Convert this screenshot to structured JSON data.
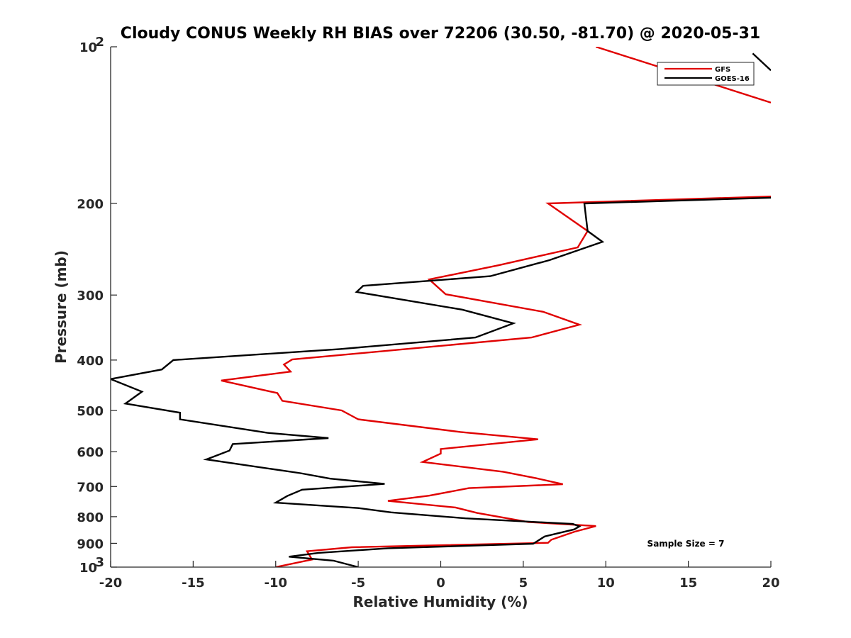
{
  "chart_data": {
    "type": "line",
    "title": "Cloudy CONUS Weekly RH BIAS over 72206 (30.50, -81.70) @ 2020-05-31",
    "xlabel": "Relative Humidity (%)",
    "ylabel": "Pressure (mb)",
    "xlim": [
      -20,
      20
    ],
    "ylim": [
      100,
      1000
    ],
    "yscale": "log",
    "yreversed": true,
    "xticks": [
      -20,
      -15,
      -10,
      -5,
      0,
      5,
      10,
      15,
      20
    ],
    "yticks": [
      {
        "value": 100,
        "label": "10",
        "sup": "2"
      },
      {
        "value": 200,
        "label": "200",
        "sup": ""
      },
      {
        "value": 300,
        "label": "300",
        "sup": ""
      },
      {
        "value": 400,
        "label": "400",
        "sup": ""
      },
      {
        "value": 500,
        "label": "500",
        "sup": ""
      },
      {
        "value": 600,
        "label": "600",
        "sup": ""
      },
      {
        "value": 700,
        "label": "700",
        "sup": ""
      },
      {
        "value": 800,
        "label": "800",
        "sup": ""
      },
      {
        "value": 900,
        "label": "900",
        "sup": ""
      },
      {
        "value": 1000,
        "label": "10",
        "sup": "3"
      }
    ],
    "legend_position": "top-right",
    "annotation": "Sample Size = 7",
    "series": [
      {
        "name": "GFS",
        "color": "#e00000",
        "points": [
          [
            9.4,
            100
          ],
          [
            20,
            128
          ],
          [
            20,
            194
          ],
          [
            6.5,
            200
          ],
          [
            8.9,
            226
          ],
          [
            8.3,
            243
          ],
          [
            3.5,
            263
          ],
          [
            -0.7,
            280
          ],
          [
            0.3,
            299
          ],
          [
            6.2,
            323
          ],
          [
            8.4,
            342
          ],
          [
            5.5,
            362
          ],
          [
            -9.0,
            399
          ],
          [
            -9.5,
            408
          ],
          [
            -9.1,
            421
          ],
          [
            -13.3,
            438
          ],
          [
            -9.9,
            463
          ],
          [
            -9.6,
            479
          ],
          [
            -6.0,
            500
          ],
          [
            -5.0,
            520
          ],
          [
            1.2,
            550
          ],
          [
            5.9,
            568
          ],
          [
            0.0,
            593
          ],
          [
            0.0,
            605
          ],
          [
            -1.1,
            628
          ],
          [
            3.8,
            656
          ],
          [
            5.8,
            675
          ],
          [
            7.4,
            693
          ],
          [
            1.7,
            705
          ],
          [
            -0.7,
            729
          ],
          [
            -3.2,
            746
          ],
          [
            0.9,
            768
          ],
          [
            2.2,
            787
          ],
          [
            5.3,
            819
          ],
          [
            9.4,
            834
          ],
          [
            8.1,
            855
          ],
          [
            6.7,
            886
          ],
          [
            6.5,
            898
          ],
          [
            -5.4,
            916
          ],
          [
            -8.1,
            932
          ],
          [
            -7.8,
            967
          ],
          [
            -10.0,
            1000
          ]
        ]
      },
      {
        "name": "GOES-16",
        "color": "#000000",
        "points": [
          [
            18.9,
            103
          ],
          [
            20,
            111
          ],
          [
            20,
            195
          ],
          [
            8.7,
            200
          ],
          [
            8.9,
            226
          ],
          [
            9.8,
            237
          ],
          [
            6.6,
            257
          ],
          [
            3.0,
            276
          ],
          [
            -4.7,
            288
          ],
          [
            -5.1,
            296
          ],
          [
            1.3,
            320
          ],
          [
            4.4,
            340
          ],
          [
            2.1,
            362
          ],
          [
            -6.1,
            381
          ],
          [
            -16.2,
            400
          ],
          [
            -16.9,
            417
          ],
          [
            -20.0,
            435
          ],
          [
            -18.1,
            460
          ],
          [
            -19.1,
            485
          ],
          [
            -15.8,
            505
          ],
          [
            -15.8,
            520
          ],
          [
            -10.5,
            552
          ],
          [
            -6.8,
            565
          ],
          [
            -12.6,
            580
          ],
          [
            -12.8,
            597
          ],
          [
            -14.2,
            621
          ],
          [
            -8.5,
            660
          ],
          [
            -6.7,
            676
          ],
          [
            -3.4,
            692
          ],
          [
            -8.4,
            710
          ],
          [
            -9.3,
            730
          ],
          [
            -10.0,
            752
          ],
          [
            -5.0,
            770
          ],
          [
            -3.0,
            785
          ],
          [
            1.5,
            806
          ],
          [
            8.0,
            826
          ],
          [
            8.4,
            835
          ],
          [
            8.1,
            846
          ],
          [
            6.3,
            873
          ],
          [
            5.6,
            902
          ],
          [
            -3.2,
            920
          ],
          [
            -7.4,
            939
          ],
          [
            -9.2,
            955
          ],
          [
            -6.5,
            972
          ],
          [
            -5.0,
            1000
          ]
        ]
      }
    ]
  }
}
